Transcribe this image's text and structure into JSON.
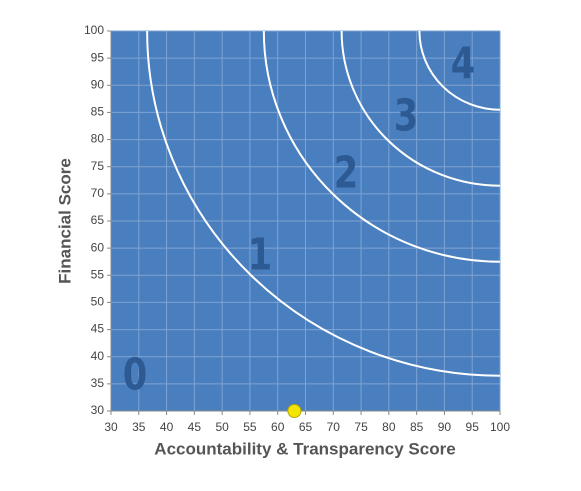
{
  "chart_data": {
    "type": "scatter",
    "x_label": "Accountability & Transparency Score",
    "y_label": "Financial Score",
    "xlim": [
      30,
      100
    ],
    "ylim": [
      30,
      100
    ],
    "xticks": [
      30,
      35,
      40,
      45,
      50,
      55,
      60,
      65,
      70,
      75,
      80,
      85,
      90,
      95,
      100
    ],
    "yticks": [
      30,
      35,
      40,
      45,
      50,
      55,
      60,
      65,
      70,
      75,
      80,
      85,
      90,
      95,
      100
    ],
    "grid": true,
    "background": "#4a7fbf",
    "zone_radii": [
      63.5,
      42.5,
      28.5,
      14.5
    ],
    "zone_labels": [
      "0",
      "1",
      "2",
      "3",
      "4"
    ],
    "series": [
      {
        "color": "#f2e600",
        "x": [
          63
        ],
        "values": [
          30
        ]
      }
    ]
  }
}
